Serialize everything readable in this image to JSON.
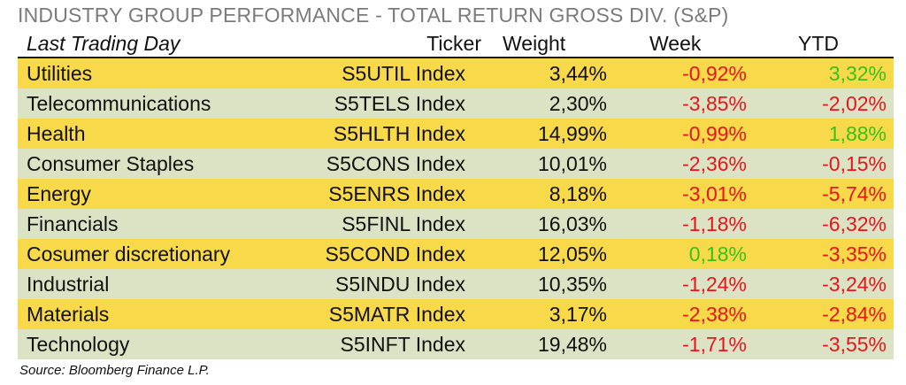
{
  "title": "INDUSTRY GROUP PERFORMANCE - TOTAL RETURN GROSS DIV. (S&P)",
  "headers": {
    "first": "Last Trading Day",
    "ticker": "Ticker",
    "weight": "Weight",
    "week": "Week",
    "ytd": "YTD"
  },
  "colors": {
    "row_odd": "#f8d94a",
    "row_even": "#dbe3c4",
    "negative": "#e8141b",
    "positive": "#36c21b"
  },
  "rows": [
    {
      "name": "Utilities",
      "ticker": "S5UTIL Index",
      "weight": "3,44%",
      "week": "-0,92%",
      "ytd": "3,32%"
    },
    {
      "name": "Telecommunications",
      "ticker": "S5TELS Index",
      "weight": "2,30%",
      "week": "-3,85%",
      "ytd": "-2,02%"
    },
    {
      "name": "Health",
      "ticker": "S5HLTH Index",
      "weight": "14,99%",
      "week": "-0,99%",
      "ytd": "1,88%"
    },
    {
      "name": "Consumer Staples",
      "ticker": "S5CONS Index",
      "weight": "10,01%",
      "week": "-2,36%",
      "ytd": "-0,15%"
    },
    {
      "name": "Energy",
      "ticker": "S5ENRS Index",
      "weight": "8,18%",
      "week": "-3,01%",
      "ytd": "-5,74%"
    },
    {
      "name": "Financials",
      "ticker": "S5FINL Index",
      "weight": "16,03%",
      "week": "-1,18%",
      "ytd": "-6,32%"
    },
    {
      "name": "Cosumer discretionary",
      "ticker": "S5COND Index",
      "weight": "12,05%",
      "week": "0,18%",
      "ytd": "-3,35%"
    },
    {
      "name": "Industrial",
      "ticker": "S5INDU Index",
      "weight": "10,35%",
      "week": "-1,24%",
      "ytd": "-3,24%"
    },
    {
      "name": "Materials",
      "ticker": "S5MATR Index",
      "weight": "3,17%",
      "week": "-2,38%",
      "ytd": "-2,84%"
    },
    {
      "name": "Technology",
      "ticker": "S5INFT Index",
      "weight": "19,48%",
      "week": "-1,71%",
      "ytd": "-3,55%"
    }
  ],
  "source": "Source: Bloomberg Finance L.P."
}
